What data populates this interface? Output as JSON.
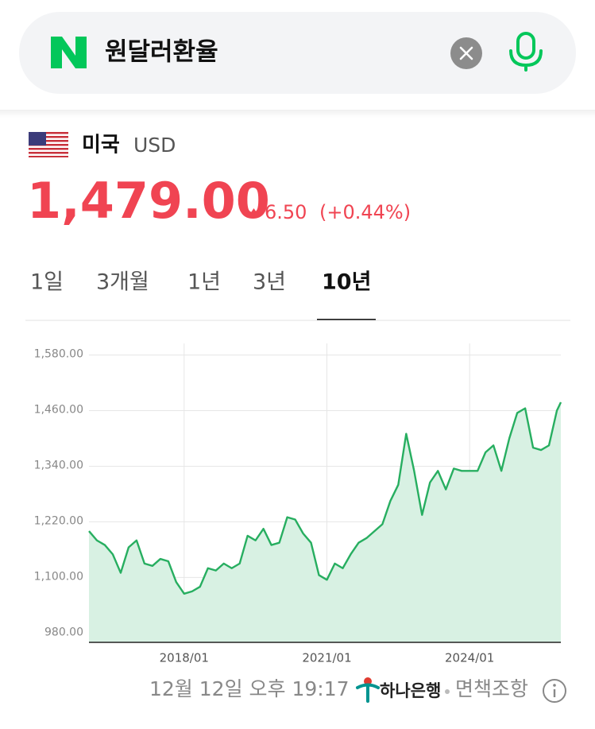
{
  "search": {
    "query": "원달러환율"
  },
  "currency": {
    "country": "미국",
    "code": "USD",
    "price": "1,479.00",
    "change": "6.50",
    "change_pct": "(+0.44%)"
  },
  "tabs": [
    "1일",
    "3개월",
    "1년",
    "3년",
    "10년"
  ],
  "active_tab": 4,
  "chart_data": {
    "type": "line",
    "x": [
      "2016/01",
      "2016/03",
      "2016/05",
      "2016/07",
      "2016/09",
      "2016/11",
      "2017/01",
      "2017/03",
      "2017/05",
      "2017/07",
      "2017/09",
      "2017/11",
      "2018/01",
      "2018/03",
      "2018/05",
      "2018/07",
      "2018/09",
      "2018/11",
      "2019/01",
      "2019/03",
      "2019/05",
      "2019/07",
      "2019/09",
      "2019/11",
      "2020/01",
      "2020/03",
      "2020/05",
      "2020/07",
      "2020/09",
      "2020/11",
      "2021/01",
      "2021/03",
      "2021/05",
      "2021/07",
      "2021/09",
      "2021/11",
      "2022/01",
      "2022/03",
      "2022/05",
      "2022/07",
      "2022/09",
      "2022/11",
      "2023/01",
      "2023/03",
      "2023/05",
      "2023/07",
      "2023/09",
      "2023/11",
      "2024/01",
      "2024/03",
      "2024/05",
      "2024/07",
      "2024/09",
      "2024/11",
      "2025/01",
      "2025/03",
      "2025/05",
      "2025/07",
      "2025/09",
      "2025/11",
      "2025/12"
    ],
    "values": [
      1200,
      1180,
      1170,
      1150,
      1110,
      1165,
      1180,
      1130,
      1125,
      1140,
      1135,
      1090,
      1065,
      1070,
      1080,
      1120,
      1115,
      1130,
      1120,
      1130,
      1190,
      1180,
      1205,
      1170,
      1175,
      1230,
      1225,
      1195,
      1175,
      1105,
      1095,
      1130,
      1120,
      1150,
      1175,
      1185,
      1200,
      1215,
      1265,
      1300,
      1410,
      1330,
      1235,
      1305,
      1330,
      1290,
      1335,
      1330,
      1330,
      1330,
      1370,
      1385,
      1330,
      1400,
      1455,
      1465,
      1380,
      1375,
      1385,
      1460,
      1478
    ],
    "color": "#27ae60",
    "fill": "#d8f1e3",
    "xlim": [
      "2016/01",
      "2025/12"
    ],
    "xticks": [
      "2018/01",
      "2021/01",
      "2024/01"
    ],
    "ylim": [
      960,
      1605
    ],
    "yticks": [
      {
        "value": 980,
        "label": "980.00"
      },
      {
        "value": 1100,
        "label": "1,100.00"
      },
      {
        "value": 1220,
        "label": "1,220.00"
      },
      {
        "value": 1340,
        "label": "1,340.00"
      },
      {
        "value": 1460,
        "label": "1,460.00"
      },
      {
        "value": 1580,
        "label": "1,580.00"
      }
    ],
    "grid": true
  },
  "footer": {
    "timestamp": "12월 12일 오후 19:17",
    "bank": "하나은행",
    "disclaimer": "면책조항"
  }
}
